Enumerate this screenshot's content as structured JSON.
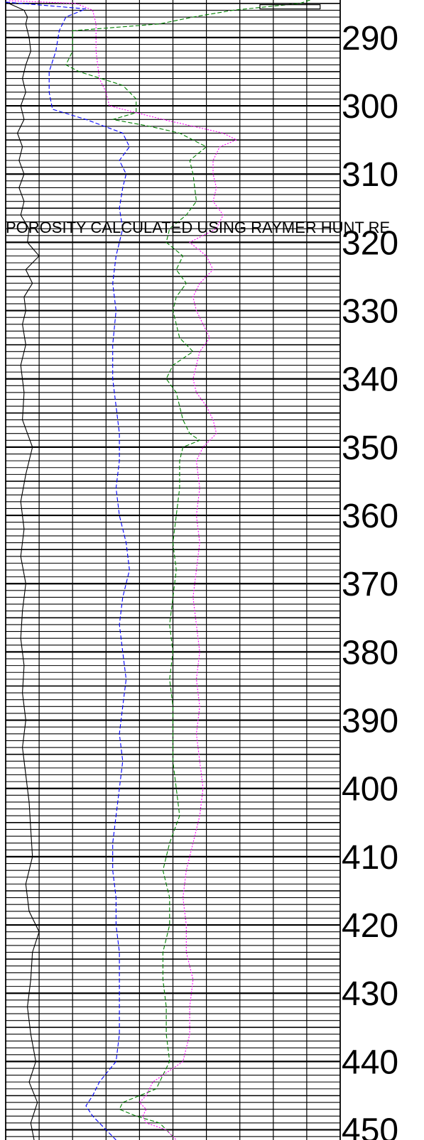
{
  "chart_data": {
    "type": "line",
    "title": "",
    "annotation": "POROSITY CALCULATED USING RAYMER HUNT RE",
    "y_axis": {
      "label": "",
      "min": 284.5,
      "max": 451.5,
      "inverted": true,
      "tick_labels": [
        "290",
        "300",
        "310",
        "320",
        "330",
        "340",
        "350",
        "360",
        "370",
        "380",
        "390",
        "400",
        "410",
        "420",
        "430",
        "440",
        "450"
      ],
      "major_step": 10,
      "minor_step": 1
    },
    "x_axis": {
      "label": "",
      "divisions": 10
    },
    "grid": true,
    "series": [
      {
        "style": "solid",
        "color": "#000000",
        "points": [
          [
            284.8,
            0.0
          ],
          [
            286,
            0.55
          ],
          [
            287,
            0.65
          ],
          [
            288,
            0.6
          ],
          [
            290,
            0.7
          ],
          [
            292,
            0.75
          ],
          [
            294,
            0.6
          ],
          [
            296,
            0.5
          ],
          [
            298,
            0.6
          ],
          [
            300,
            0.45
          ],
          [
            302,
            0.55
          ],
          [
            304,
            0.35
          ],
          [
            306,
            0.5
          ],
          [
            308,
            0.4
          ],
          [
            310,
            0.55
          ],
          [
            312,
            0.4
          ],
          [
            314,
            0.55
          ],
          [
            316,
            0.45
          ],
          [
            318,
            0.7
          ],
          [
            320,
            0.65
          ],
          [
            322,
            1.0
          ],
          [
            324,
            0.6
          ],
          [
            326,
            0.8
          ],
          [
            328,
            0.55
          ],
          [
            330,
            0.6
          ],
          [
            332,
            0.5
          ],
          [
            335,
            0.6
          ],
          [
            338,
            0.45
          ],
          [
            342,
            0.55
          ],
          [
            346,
            0.5
          ],
          [
            350,
            0.8
          ],
          [
            354,
            0.6
          ],
          [
            358,
            0.45
          ],
          [
            362,
            0.55
          ],
          [
            366,
            0.45
          ],
          [
            370,
            0.6
          ],
          [
            374,
            0.5
          ],
          [
            378,
            0.45
          ],
          [
            382,
            0.55
          ],
          [
            386,
            0.5
          ],
          [
            390,
            0.6
          ],
          [
            394,
            0.5
          ],
          [
            398,
            0.6
          ],
          [
            402,
            0.7
          ],
          [
            406,
            0.75
          ],
          [
            410,
            0.8
          ],
          [
            414,
            0.6
          ],
          [
            418,
            0.7
          ],
          [
            421,
            1.0
          ],
          [
            424,
            0.8
          ],
          [
            428,
            0.75
          ],
          [
            432,
            0.65
          ],
          [
            436,
            0.75
          ],
          [
            440,
            0.9
          ],
          [
            443,
            0.7
          ],
          [
            446,
            0.95
          ],
          [
            449,
            0.75
          ],
          [
            451.5,
            0.85
          ]
        ]
      },
      {
        "style": "dashed",
        "color": "#0000ff",
        "points": [
          [
            284.8,
            0.0
          ],
          [
            285.8,
            2.4
          ],
          [
            287,
            1.8
          ],
          [
            289,
            1.6
          ],
          [
            292,
            1.5
          ],
          [
            295,
            1.3
          ],
          [
            298,
            1.3
          ],
          [
            300.5,
            1.4
          ],
          [
            302,
            2.4
          ],
          [
            304,
            3.5
          ],
          [
            306,
            3.7
          ],
          [
            308,
            3.4
          ],
          [
            310,
            3.6
          ],
          [
            312,
            3.5
          ],
          [
            315,
            3.4
          ],
          [
            318,
            3.5
          ],
          [
            322,
            3.3
          ],
          [
            326,
            3.2
          ],
          [
            330,
            3.3
          ],
          [
            335,
            3.2
          ],
          [
            340,
            3.2
          ],
          [
            344,
            3.3
          ],
          [
            348,
            3.4
          ],
          [
            352,
            3.4
          ],
          [
            356,
            3.3
          ],
          [
            360,
            3.4
          ],
          [
            364,
            3.6
          ],
          [
            368,
            3.7
          ],
          [
            372,
            3.5
          ],
          [
            376,
            3.4
          ],
          [
            380,
            3.5
          ],
          [
            384,
            3.6
          ],
          [
            388,
            3.5
          ],
          [
            392,
            3.4
          ],
          [
            396,
            3.5
          ],
          [
            400,
            3.4
          ],
          [
            404,
            3.3
          ],
          [
            408,
            3.2
          ],
          [
            412,
            3.2
          ],
          [
            416,
            3.3
          ],
          [
            420,
            3.3
          ],
          [
            424,
            3.4
          ],
          [
            428,
            3.4
          ],
          [
            432,
            3.4
          ],
          [
            436,
            3.4
          ],
          [
            440,
            3.3
          ],
          [
            443,
            2.8
          ],
          [
            445,
            2.6
          ],
          [
            446.5,
            2.4
          ],
          [
            448,
            2.6
          ],
          [
            450,
            3.0
          ],
          [
            451.5,
            3.3
          ]
        ]
      },
      {
        "style": "dashed",
        "color": "#008000",
        "points": [
          [
            284.5,
            9.1
          ],
          [
            285,
            8.8
          ],
          [
            286,
            6.8
          ],
          [
            287,
            5.6
          ],
          [
            288,
            4.6
          ],
          [
            288.5,
            3.3
          ],
          [
            289,
            2.0
          ],
          [
            292,
            2.0
          ],
          [
            294,
            1.8
          ],
          [
            295,
            2.2
          ],
          [
            297,
            3.5
          ],
          [
            299,
            3.9
          ],
          [
            301,
            3.9
          ],
          [
            302,
            3.2
          ],
          [
            303,
            4.3
          ],
          [
            304,
            5.2
          ],
          [
            306,
            6.0
          ],
          [
            308,
            5.5
          ],
          [
            310,
            5.6
          ],
          [
            314,
            5.7
          ],
          [
            316,
            5.4
          ],
          [
            318,
            4.9
          ],
          [
            320,
            4.8
          ],
          [
            322,
            5.3
          ],
          [
            324,
            5.1
          ],
          [
            326,
            5.4
          ],
          [
            328,
            5.1
          ],
          [
            330,
            5.0
          ],
          [
            334,
            5.2
          ],
          [
            336,
            5.6
          ],
          [
            338,
            5.0
          ],
          [
            340,
            4.8
          ],
          [
            342,
            5.1
          ],
          [
            344,
            5.2
          ],
          [
            346,
            5.3
          ],
          [
            348,
            5.5
          ],
          [
            349,
            5.8
          ],
          [
            350,
            5.3
          ],
          [
            352,
            5.2
          ],
          [
            356,
            5.2
          ],
          [
            360,
            5.1
          ],
          [
            364,
            5.0
          ],
          [
            368,
            5.1
          ],
          [
            372,
            5.0
          ],
          [
            376,
            4.9
          ],
          [
            380,
            5.0
          ],
          [
            384,
            4.9
          ],
          [
            388,
            5.0
          ],
          [
            392,
            5.0
          ],
          [
            396,
            5.0
          ],
          [
            400,
            5.1
          ],
          [
            404,
            5.2
          ],
          [
            408,
            4.9
          ],
          [
            412,
            4.7
          ],
          [
            416,
            4.9
          ],
          [
            420,
            4.9
          ],
          [
            424,
            4.7
          ],
          [
            428,
            4.7
          ],
          [
            432,
            4.8
          ],
          [
            436,
            4.8
          ],
          [
            440,
            4.9
          ],
          [
            444,
            4.5
          ],
          [
            446,
            3.5
          ],
          [
            447,
            3.4
          ],
          [
            448,
            3.9
          ],
          [
            449,
            4.6
          ],
          [
            451,
            5.0
          ]
        ]
      },
      {
        "style": "dotted",
        "color": "#ff00ff",
        "points": [
          [
            284.6,
            0.1
          ],
          [
            285,
            2.1
          ],
          [
            286,
            2.6
          ],
          [
            288,
            2.7
          ],
          [
            292,
            2.7
          ],
          [
            296,
            2.8
          ],
          [
            298,
            3.0
          ],
          [
            300,
            3.1
          ],
          [
            302,
            4.7
          ],
          [
            304,
            6.5
          ],
          [
            305,
            6.9
          ],
          [
            306,
            6.4
          ],
          [
            308,
            6.2
          ],
          [
            310,
            6.2
          ],
          [
            312,
            6.3
          ],
          [
            314,
            6.2
          ],
          [
            316,
            6.5
          ],
          [
            318,
            6.3
          ],
          [
            320,
            5.5
          ],
          [
            322,
            6.0
          ],
          [
            324,
            6.2
          ],
          [
            326,
            5.8
          ],
          [
            328,
            5.6
          ],
          [
            330,
            5.7
          ],
          [
            332,
            5.9
          ],
          [
            334,
            6.1
          ],
          [
            336,
            5.8
          ],
          [
            338,
            5.7
          ],
          [
            340,
            5.6
          ],
          [
            342,
            5.7
          ],
          [
            344,
            6.0
          ],
          [
            346,
            6.2
          ],
          [
            348,
            6.3
          ],
          [
            350,
            5.9
          ],
          [
            352,
            5.7
          ],
          [
            356,
            5.8
          ],
          [
            360,
            5.7
          ],
          [
            364,
            5.8
          ],
          [
            368,
            5.7
          ],
          [
            372,
            5.6
          ],
          [
            376,
            5.7
          ],
          [
            380,
            5.8
          ],
          [
            384,
            5.7
          ],
          [
            388,
            5.8
          ],
          [
            392,
            5.7
          ],
          [
            396,
            5.8
          ],
          [
            400,
            5.9
          ],
          [
            404,
            5.8
          ],
          [
            408,
            5.6
          ],
          [
            412,
            5.4
          ],
          [
            416,
            5.3
          ],
          [
            420,
            5.4
          ],
          [
            424,
            5.4
          ],
          [
            428,
            5.6
          ],
          [
            432,
            5.5
          ],
          [
            436,
            5.5
          ],
          [
            440,
            5.3
          ],
          [
            443,
            4.4
          ],
          [
            445,
            4.2
          ],
          [
            446,
            4.0
          ],
          [
            447,
            4.2
          ],
          [
            448,
            4.1
          ],
          [
            449,
            4.2
          ],
          [
            450,
            4.8
          ],
          [
            451.5,
            5.1
          ]
        ]
      }
    ],
    "header_box": {
      "depth": 285.5,
      "x_from": 7.6,
      "x_to": 9.4
    }
  }
}
